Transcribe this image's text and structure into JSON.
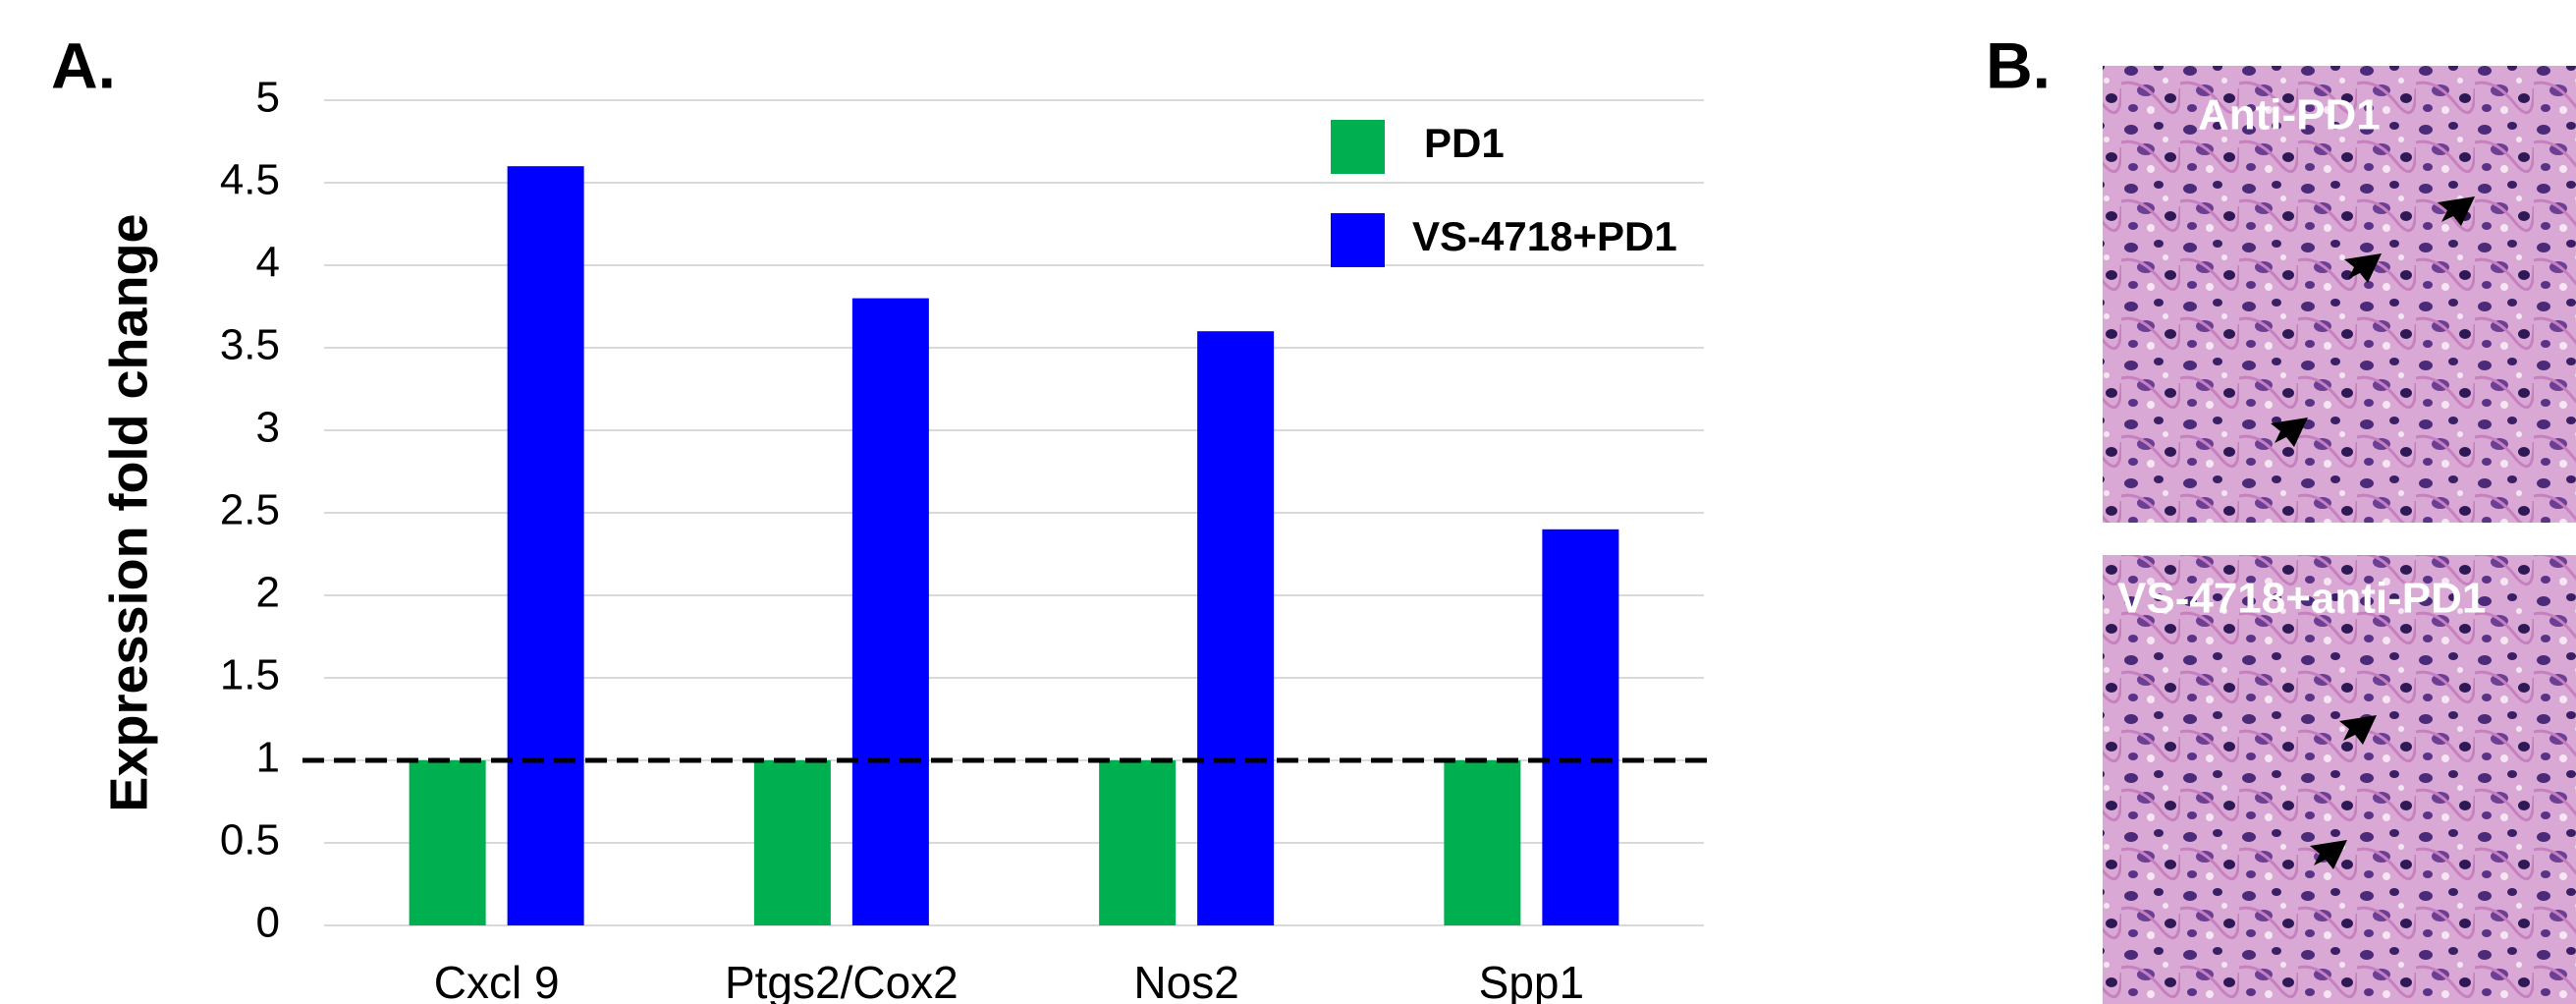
{
  "panel_a_label": "A.",
  "panel_b_label": "B.",
  "chart_data": {
    "type": "bar",
    "y_label": "Expression fold change",
    "categories": [
      "Cxcl 9",
      "Ptgs2/Cox2",
      "Nos2",
      "Spp1"
    ],
    "series": [
      {
        "name": "PD1",
        "color": "#00b050",
        "values": [
          1,
          1,
          1,
          1
        ]
      },
      {
        "name": "VS-4718+PD1",
        "color": "#0000ff",
        "values": [
          4.6,
          3.8,
          3.6,
          2.4
        ]
      }
    ],
    "ylim": [
      0,
      5
    ],
    "yticks": [
      0,
      0.5,
      1,
      1.5,
      2,
      2.5,
      3,
      3.5,
      4,
      4.5,
      5
    ],
    "grid": true,
    "reference_line": 1,
    "legend": "top-right"
  },
  "images": [
    {
      "label": "Anti-PD1"
    },
    {
      "label": "VS-4718+anti-PD1"
    }
  ]
}
